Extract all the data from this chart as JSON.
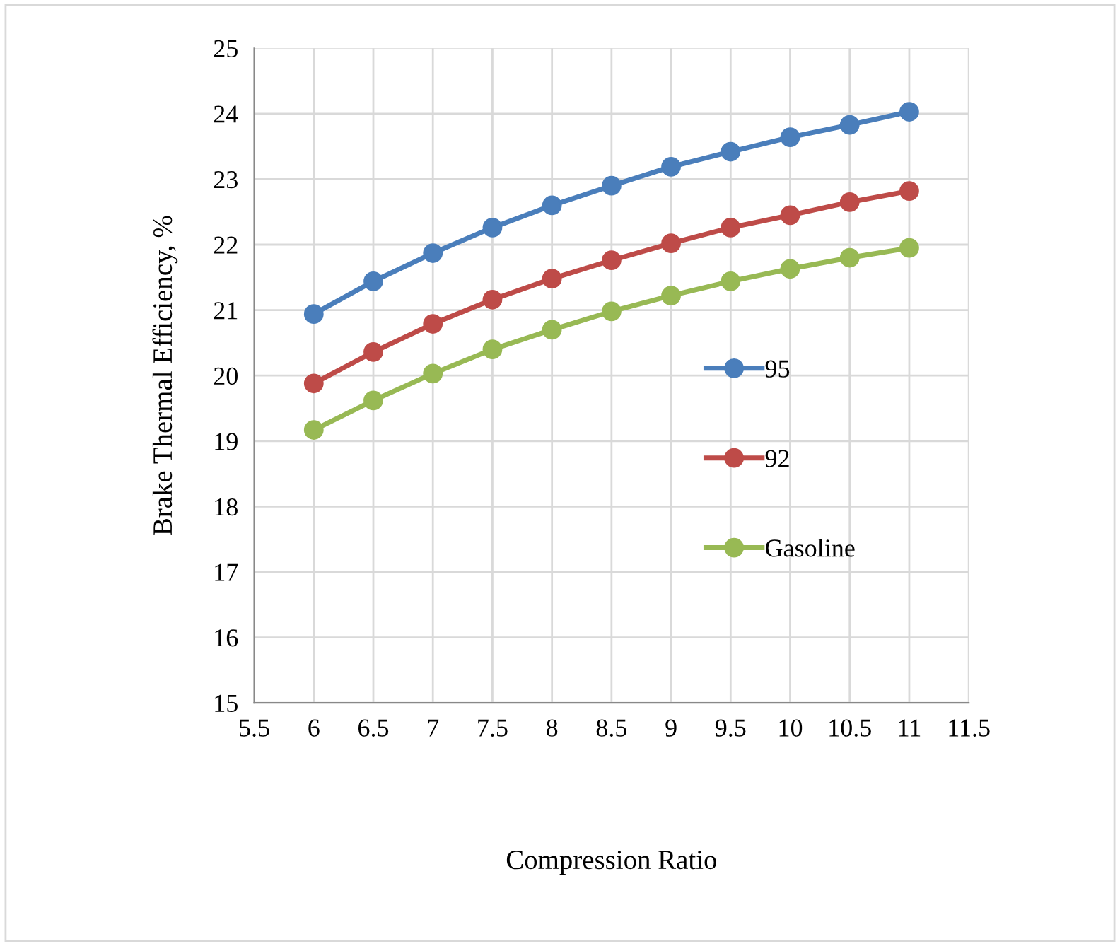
{
  "chart_data": {
    "type": "line",
    "xlabel": "Compression Ratio",
    "ylabel": "Brake Thermal Efficiency, %",
    "x": [
      6,
      6.5,
      7,
      7.5,
      8,
      8.5,
      9,
      9.5,
      10,
      10.5,
      11
    ],
    "series": [
      {
        "name": "95",
        "color": "#4a7ebb",
        "values": [
          20.94,
          21.44,
          21.87,
          22.26,
          22.6,
          22.9,
          23.19,
          23.42,
          23.64,
          23.83,
          24.03
        ]
      },
      {
        "name": "92",
        "color": "#be4b48",
        "values": [
          19.88,
          20.36,
          20.79,
          21.16,
          21.48,
          21.76,
          22.02,
          22.26,
          22.45,
          22.65,
          22.82
        ]
      },
      {
        "name": "Gasoline",
        "color": "#98b954",
        "values": [
          19.17,
          19.62,
          20.03,
          20.4,
          20.7,
          20.98,
          21.22,
          21.44,
          21.63,
          21.8,
          21.95
        ]
      }
    ],
    "xlim": [
      5.5,
      11.5
    ],
    "xticks": [
      5.5,
      6,
      6.5,
      7,
      7.5,
      8,
      8.5,
      9,
      9.5,
      10,
      10.5,
      11,
      11.5
    ],
    "ylim": [
      15,
      25
    ],
    "yticks": [
      15,
      16,
      17,
      18,
      19,
      20,
      21,
      22,
      23,
      24,
      25
    ],
    "grid": true,
    "legend": "right",
    "marker": "circle",
    "line_style": "solid"
  }
}
